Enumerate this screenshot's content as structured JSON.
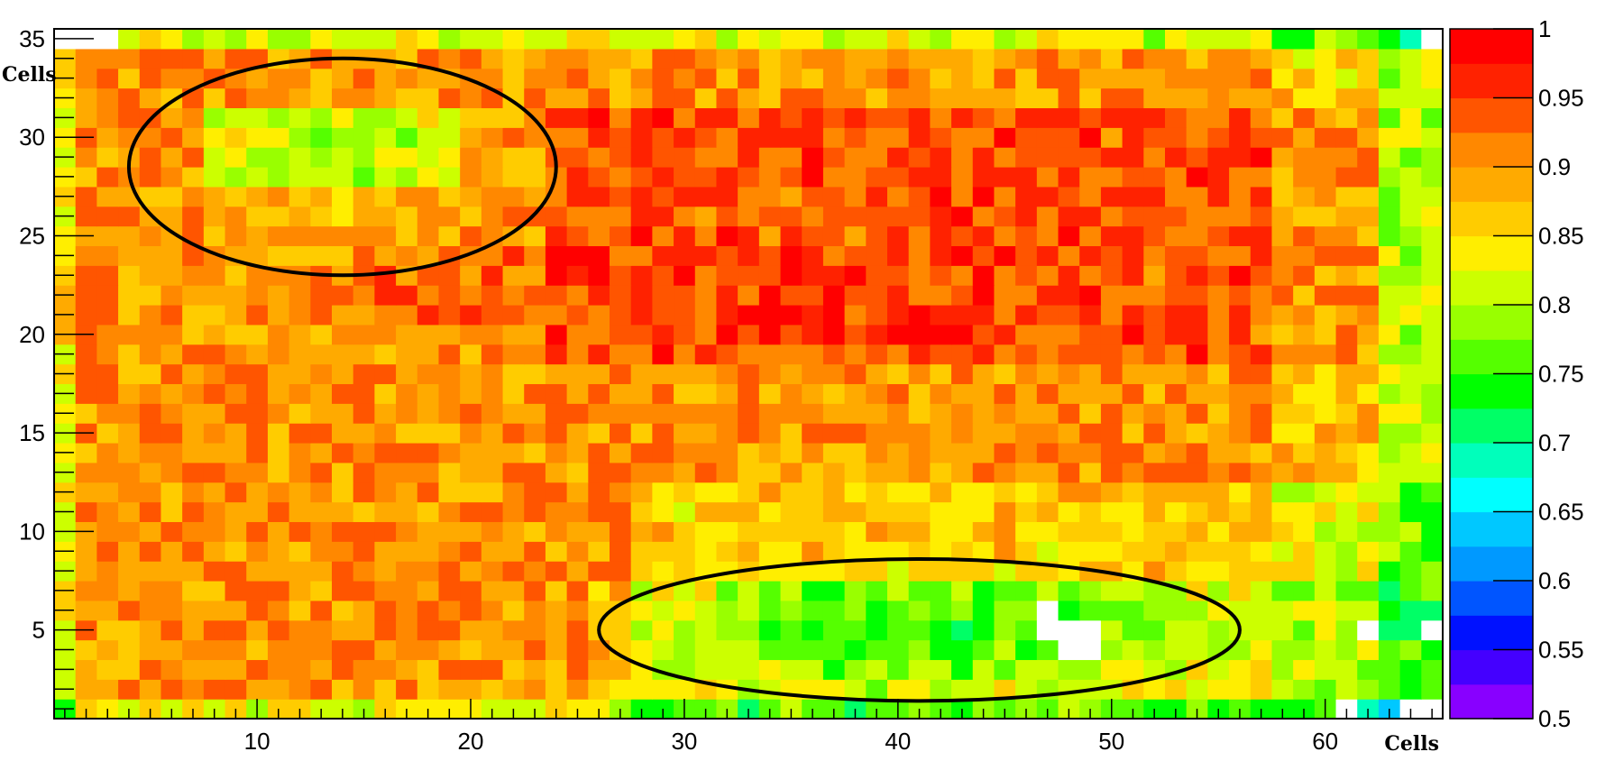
{
  "chart_data": {
    "type": "heatmap",
    "xlabel": "Cells",
    "ylabel": "Cells",
    "x_range": [
      1,
      65
    ],
    "y_range": [
      1,
      35
    ],
    "x_ticks": [
      10,
      20,
      30,
      40,
      50,
      60
    ],
    "y_ticks": [
      5,
      10,
      15,
      20,
      25,
      30,
      35
    ],
    "colorbar": {
      "min": 0.5,
      "max": 1.0,
      "ticks": [
        0.5,
        0.55,
        0.6,
        0.65,
        0.7,
        0.75,
        0.8,
        0.85,
        0.9,
        0.95,
        1
      ],
      "tick_labels": [
        "0.5",
        "0.55",
        "0.6",
        "0.65",
        "0.7",
        "0.75",
        "0.8",
        "0.85",
        "0.9",
        "0.95",
        "1"
      ],
      "palette": [
        "#8800ff",
        "#4400ff",
        "#0011ff",
        "#0055ff",
        "#0099ff",
        "#00c8ff",
        "#00ffff",
        "#00ffbb",
        "#00ff66",
        "#00ff00",
        "#55ff00",
        "#99ff00",
        "#ccff00",
        "#ffee00",
        "#ffcc00",
        "#ffaa00",
        "#ff8800",
        "#ff5500",
        "#ff2200",
        "#ff0000"
      ]
    },
    "regions_summary": "Efficiency per cell mostly 0.85-0.95; upper-left region (x 6-24, y 23-33) and lower-middle region (x 28-55, y 2-8) circled as lower-efficiency areas",
    "highlighted_regions": [
      {
        "x_center": 14,
        "y_center": 28.5,
        "x_radius": 10,
        "y_radius": 5.5
      },
      {
        "x_center": 41,
        "y_center": 5,
        "x_radius": 15,
        "y_radius": 3.6
      }
    ]
  },
  "colors": {
    "missing": "#ffffff",
    "ellipse": "#000000"
  }
}
